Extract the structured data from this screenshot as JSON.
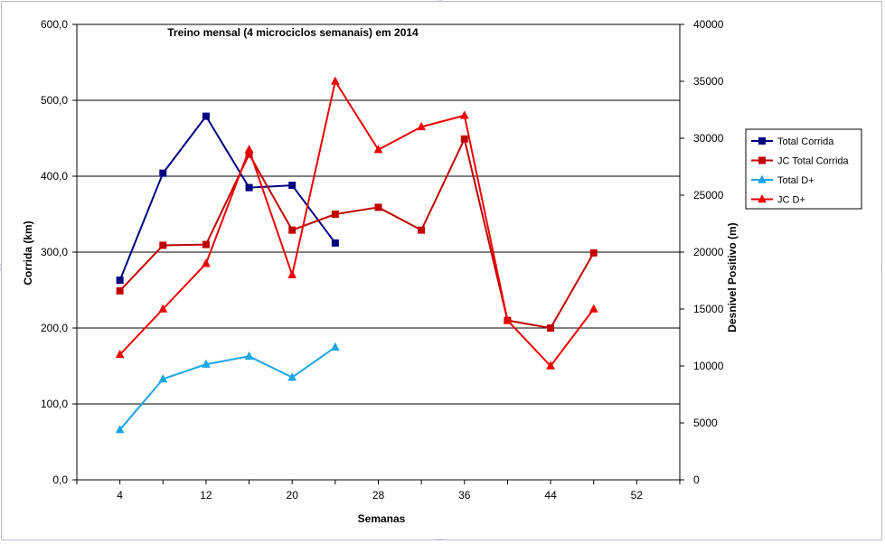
{
  "chart_data": {
    "type": "line",
    "title": "Treino mensal (4 microciclos semanais) em 2014",
    "xlabel": "Semanas",
    "ylabel": "Corrida (km)",
    "y2label": "Desnivel Positivo (m)",
    "xlim": [
      0,
      56
    ],
    "ylim": [
      0,
      600
    ],
    "y2lim": [
      0,
      40000
    ],
    "xticks": [
      4,
      12,
      20,
      28,
      36,
      44,
      52
    ],
    "xtick_labels": [
      "4",
      "12",
      "20",
      "28",
      "36",
      "44",
      "52"
    ],
    "yticks": [
      0,
      100,
      200,
      300,
      400,
      500,
      600
    ],
    "ytick_labels": [
      "0,0",
      "100,0",
      "200,0",
      "300,0",
      "400,0",
      "500,0",
      "600,0"
    ],
    "y2ticks": [
      0,
      5000,
      10000,
      15000,
      20000,
      25000,
      30000,
      35000,
      40000
    ],
    "y2tick_labels": [
      "0",
      "5000",
      "10000",
      "15000",
      "20000",
      "25000",
      "30000",
      "35000",
      "40000"
    ],
    "grid": "horizontal",
    "legend_position": "right",
    "series": [
      {
        "name": "Total Corrida",
        "axis": "left",
        "color": "#000080",
        "marker": "square",
        "x": [
          4,
          8,
          12,
          16,
          20,
          24
        ],
        "values": [
          263,
          404,
          479,
          385,
          388,
          312
        ]
      },
      {
        "name": "JC Total Corrida",
        "axis": "left",
        "color": "#c00000",
        "marker": "square",
        "x": [
          4,
          8,
          12,
          16,
          20,
          24,
          28,
          32,
          36,
          40,
          44,
          48
        ],
        "values": [
          249,
          309,
          310,
          429,
          329,
          350,
          359,
          329,
          449,
          210,
          200,
          299
        ]
      },
      {
        "name": "Total D+",
        "axis": "right",
        "color": "#1aa6e4",
        "marker": "triangle",
        "x": [
          4,
          8,
          12,
          16,
          20,
          24
        ],
        "values": [
          4400,
          8850,
          10150,
          10850,
          9000,
          11650
        ]
      },
      {
        "name": "JC D+",
        "axis": "right",
        "color": "#ee0000",
        "marker": "triangle",
        "x": [
          4,
          8,
          12,
          16,
          20,
          24,
          28,
          32,
          36,
          40,
          44,
          48
        ],
        "values": [
          11000,
          15000,
          19000,
          29000,
          18000,
          35000,
          29000,
          31000,
          32000,
          14000,
          10000,
          15000
        ]
      }
    ]
  }
}
